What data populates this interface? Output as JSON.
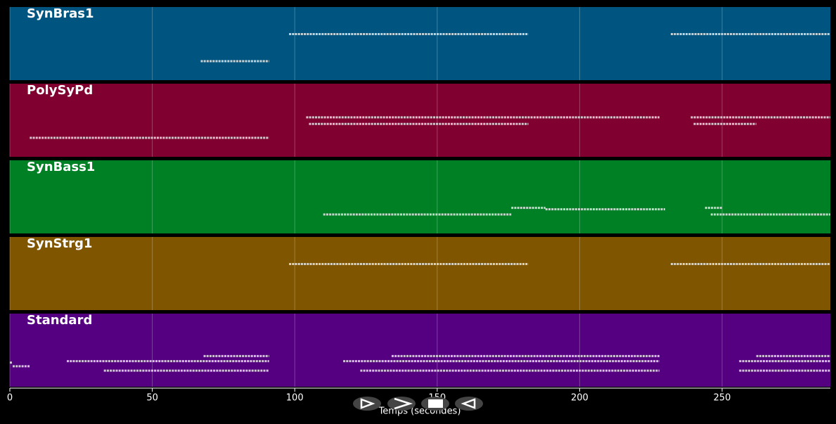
{
  "chart_data": {
    "type": "pianoroll",
    "x_label": "Temps (secondes)",
    "xlim": [
      0,
      288
    ],
    "xticks": [
      0,
      50,
      100,
      150,
      200,
      250
    ],
    "grid": true,
    "series": [
      {
        "name": "SynBras1",
        "color": "#005580",
        "notes": [
          [
            67,
            91,
            0.26
          ],
          [
            98,
            182,
            0.63
          ],
          [
            232,
            288,
            0.63
          ]
        ]
      },
      {
        "name": "PolySyPd",
        "color": "#800030",
        "notes": [
          [
            7,
            91,
            0.26
          ],
          [
            104,
            228,
            0.54
          ],
          [
            105,
            182,
            0.45
          ],
          [
            239,
            288,
            0.54
          ],
          [
            240,
            262,
            0.45
          ]
        ]
      },
      {
        "name": "SynBass1",
        "color": "#008025",
        "notes": [
          [
            110,
            176,
            0.26
          ],
          [
            176,
            188,
            0.35
          ],
          [
            188,
            230,
            0.33
          ],
          [
            244,
            250,
            0.35
          ],
          [
            246,
            288,
            0.26
          ]
        ]
      },
      {
        "name": "SynStrg1",
        "color": "#7f5500",
        "notes": [
          [
            98,
            182,
            0.63
          ],
          [
            232,
            288,
            0.63
          ]
        ]
      },
      {
        "name": "Standard",
        "color": "#550080",
        "notes": [
          [
            0,
            1,
            0.33
          ],
          [
            1,
            7,
            0.28
          ],
          [
            20,
            91,
            0.35
          ],
          [
            33,
            91,
            0.22
          ],
          [
            68,
            91,
            0.42
          ],
          [
            117,
            228,
            0.35
          ],
          [
            134,
            228,
            0.42
          ],
          [
            123,
            228,
            0.22
          ],
          [
            256,
            288,
            0.35
          ],
          [
            262,
            288,
            0.42
          ],
          [
            256,
            288,
            0.22
          ]
        ]
      }
    ]
  }
}
